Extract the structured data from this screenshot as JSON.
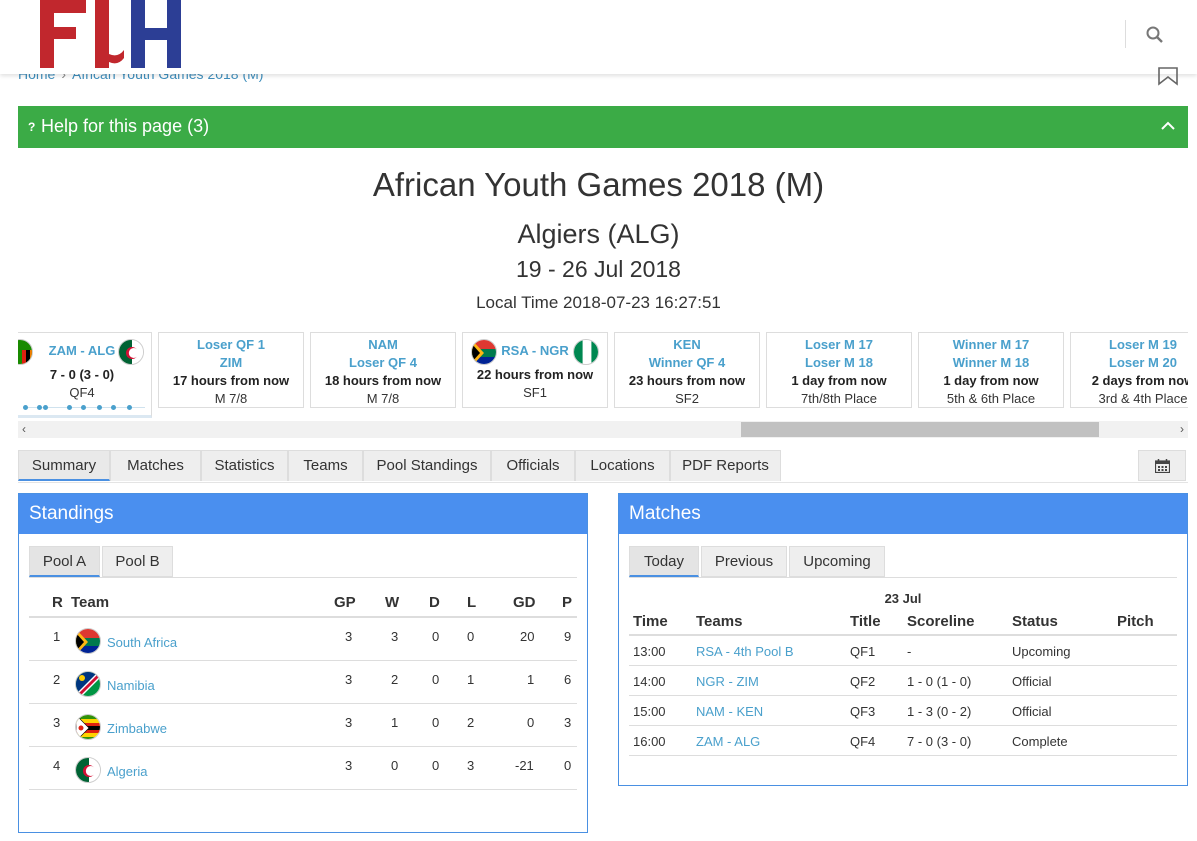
{
  "header": {
    "logo_text": "FIH",
    "breadcrumb": [
      "Home",
      "African Youth Games 2018 (M)"
    ]
  },
  "help": {
    "label": "Help for this page (3)",
    "icon": "question-icon"
  },
  "event": {
    "title": "African Youth Games 2018 (M)",
    "location": "Algiers (ALG)",
    "dates": "19 - 26 Jul 2018",
    "local_time": "Local Time 2018-07-23 16:27:51"
  },
  "match_strip": [
    {
      "teams": "ZAM - ALG",
      "score": "7 - 0 (3 - 0)",
      "round": "QF4"
    },
    {
      "line1": "Loser QF 1",
      "line2": "ZIM",
      "when": "17 hours from now",
      "round": "M 7/8"
    },
    {
      "line1": "NAM",
      "line2": "Loser QF 4",
      "when": "18 hours from now",
      "round": "M 7/8"
    },
    {
      "teams": "RSA - NGR",
      "when": "22 hours from now",
      "round": "SF1"
    },
    {
      "line1": "KEN",
      "line2": "Winner QF 4",
      "when": "23 hours from now",
      "round": "SF2"
    },
    {
      "line1": "Loser M 17",
      "line2": "Loser M 18",
      "when": "1 day from now",
      "round": "7th/8th Place"
    },
    {
      "line1": "Winner M 17",
      "line2": "Winner M 18",
      "when": "1 day from now",
      "round": "5th & 6th Place"
    },
    {
      "line1": "Loser M 19",
      "line2": "Loser M 20",
      "when": "2 days from now",
      "round": "3rd & 4th Place"
    }
  ],
  "tabs": [
    "Summary",
    "Matches",
    "Statistics",
    "Teams",
    "Pool Standings",
    "Officials",
    "Locations",
    "PDF Reports"
  ],
  "active_tab": "Summary",
  "standings": {
    "title": "Standings",
    "pools": [
      "Pool A",
      "Pool B"
    ],
    "active_pool": "Pool A",
    "columns": [
      "R",
      "Team",
      "GP",
      "W",
      "D",
      "L",
      "GD",
      "P"
    ],
    "rows": [
      {
        "rank": "1",
        "team": "South Africa",
        "gp": "3",
        "w": "3",
        "d": "0",
        "l": "0",
        "gd": "20",
        "p": "9"
      },
      {
        "rank": "2",
        "team": "Namibia",
        "gp": "3",
        "w": "2",
        "d": "0",
        "l": "1",
        "gd": "1",
        "p": "6"
      },
      {
        "rank": "3",
        "team": "Zimbabwe",
        "gp": "3",
        "w": "1",
        "d": "0",
        "l": "2",
        "gd": "0",
        "p": "3"
      },
      {
        "rank": "4",
        "team": "Algeria",
        "gp": "3",
        "w": "0",
        "d": "0",
        "l": "3",
        "gd": "-21",
        "p": "0"
      }
    ]
  },
  "matches": {
    "title": "Matches",
    "tabs": [
      "Today",
      "Previous",
      "Upcoming"
    ],
    "active_tab": "Today",
    "date": "23 Jul",
    "columns": [
      "Time",
      "Teams",
      "Title",
      "Scoreline",
      "Status",
      "Pitch"
    ],
    "rows": [
      {
        "time": "13:00",
        "teams": "RSA - 4th Pool B",
        "title": "QF1",
        "score": "-",
        "status": "Upcoming",
        "pitch": ""
      },
      {
        "time": "14:00",
        "teams": "NGR - ZIM",
        "title": "QF2",
        "score": "1 - 0 (1 - 0)",
        "status": "Official",
        "pitch": ""
      },
      {
        "time": "15:00",
        "teams": "NAM - KEN",
        "title": "QF3",
        "score": "1 - 3 (0 - 2)",
        "status": "Official",
        "pitch": ""
      },
      {
        "time": "16:00",
        "teams": "ZAM - ALG",
        "title": "QF4",
        "score": "7 - 0 (3 - 0)",
        "status": "Complete",
        "pitch": ""
      }
    ]
  },
  "colors": {
    "brand_red": "#c1272d",
    "brand_blue": "#2c3e95",
    "help_green": "#3bab46",
    "panel_blue": "#4a8fef",
    "link": "#4aa0cc"
  }
}
